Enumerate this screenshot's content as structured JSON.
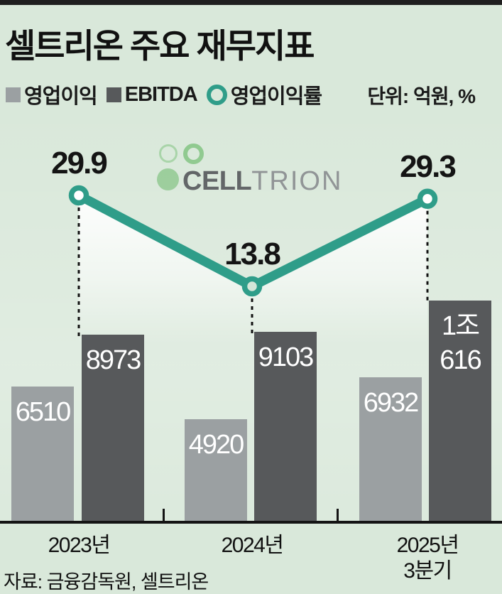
{
  "header": {
    "title": "셀트리온 주요 재무지표",
    "unit_label": "단위: 억원, %"
  },
  "legend": {
    "items": [
      {
        "label": "영업이익",
        "swatch": "square",
        "color": "#9ba0a2"
      },
      {
        "label": "EBITDA",
        "swatch": "square",
        "color": "#57595b"
      },
      {
        "label": "영업이익률",
        "swatch": "ring",
        "color": "#2f9d89"
      }
    ]
  },
  "logo": {
    "name": "CELLTRION",
    "bold_text": "CELL",
    "light_text": "TRION",
    "green": "#97cb97"
  },
  "chart_data": {
    "type": "bar+line combo",
    "categories": [
      "2023년",
      "2024년",
      "2025년 3분기"
    ],
    "category_label_lines": [
      [
        "2023년"
      ],
      [
        "2024년"
      ],
      [
        "2025년",
        "3분기"
      ]
    ],
    "series": [
      {
        "name": "영업이익",
        "type": "bar",
        "color": "#9ba0a2",
        "values": [
          6510,
          4920,
          6932
        ],
        "value_labels": [
          [
            "6510"
          ],
          [
            "4920"
          ],
          [
            "6932"
          ]
        ]
      },
      {
        "name": "EBITDA",
        "type": "bar",
        "color": "#57595b",
        "values": [
          8973,
          9103,
          10616
        ],
        "value_labels": [
          [
            "8973"
          ],
          [
            "9103"
          ],
          [
            "1조",
            "616"
          ]
        ]
      },
      {
        "name": "영업이익률",
        "type": "line",
        "color": "#2f9d89",
        "values": [
          29.9,
          13.8,
          29.3
        ],
        "value_labels": [
          [
            "29.9"
          ],
          [
            "13.8"
          ],
          [
            "29.3"
          ]
        ],
        "marker_fills": [
          "#ffffff",
          "#d5e6d8",
          "#ffffff"
        ]
      }
    ],
    "unit": "억원, %",
    "legend_position": "top-left",
    "grid": false
  },
  "footer": {
    "source": "자료: 금융감독원, 셀트리온"
  },
  "colors": {
    "background": "#d9e8da",
    "axis": "#141414",
    "title_text": "#111111",
    "accent_teal": "#2f9d89"
  }
}
